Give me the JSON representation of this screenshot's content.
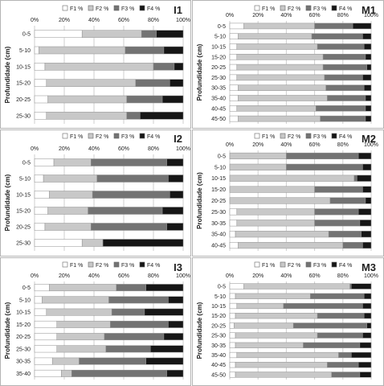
{
  "colors": {
    "F1": "#ffffff",
    "F2": "#c8c8c8",
    "F3": "#737373",
    "F4": "#161616",
    "grid": "#cfcfcf",
    "bar_edge": "#909090",
    "panel_border": "#b4b4b4"
  },
  "chart_data": [
    {
      "type": "bar",
      "orientation": "horizontal",
      "stacked": true,
      "title": "I1",
      "ylabel": "Profundidade (cm)",
      "xticks": [
        "0%",
        "20%",
        "40%",
        "60%",
        "80%",
        "100%"
      ],
      "xlim": [
        0,
        100
      ],
      "legend": [
        "F1 %",
        "F2 %",
        "F3 %",
        "F4 %"
      ],
      "legend_position": "top",
      "grid": true,
      "categories": [
        "0-5",
        "5-10",
        "10-15",
        "15-20",
        "20-25",
        "25-30"
      ],
      "series": [
        {
          "name": "F1 %",
          "values": [
            32,
            3,
            7,
            8,
            9,
            8
          ]
        },
        {
          "name": "F2 %",
          "values": [
            40,
            58,
            73,
            60,
            53,
            54
          ]
        },
        {
          "name": "F3 %",
          "values": [
            10,
            26,
            14,
            23,
            24,
            9
          ]
        },
        {
          "name": "F4 %",
          "values": [
            18,
            13,
            6,
            9,
            14,
            29
          ]
        }
      ]
    },
    {
      "type": "bar",
      "orientation": "horizontal",
      "stacked": true,
      "title": "M1",
      "ylabel": "Profundidade (cm)",
      "xticks": [
        "0%",
        "20%",
        "40%",
        "60%",
        "80%",
        "100%"
      ],
      "xlim": [
        0,
        100
      ],
      "legend": [
        "F1 %",
        "F2 %",
        "F3 %",
        "F4 %"
      ],
      "legend_position": "top",
      "grid": true,
      "categories": [
        "0-5",
        "5-10",
        "10-15",
        "15-20",
        "20-25",
        "25-30",
        "30-35",
        "35-40",
        "40-45",
        "45-50"
      ],
      "series": [
        {
          "name": "F1 %",
          "values": [
            10,
            6,
            5,
            5,
            5,
            5,
            6,
            6,
            5,
            6
          ]
        },
        {
          "name": "F2 %",
          "values": [
            50,
            52,
            57,
            61,
            61,
            62,
            62,
            63,
            56,
            58
          ]
        },
        {
          "name": "F3 %",
          "values": [
            27,
            36,
            33,
            30,
            31,
            27,
            27,
            27,
            35,
            32
          ]
        },
        {
          "name": "F4 %",
          "values": [
            13,
            6,
            5,
            4,
            3,
            6,
            5,
            4,
            4,
            4
          ]
        }
      ]
    },
    {
      "type": "bar",
      "orientation": "horizontal",
      "stacked": true,
      "title": "I2",
      "ylabel": "Profundidade (cm)",
      "xticks": [
        "0%",
        "20%",
        "40%",
        "60%",
        "80%",
        "100%"
      ],
      "xlim": [
        0,
        100
      ],
      "legend": [
        "F1 %",
        "F2 %",
        "F3 %",
        "F4 %"
      ],
      "legend_position": "top",
      "grid": true,
      "categories": [
        "0-5",
        "5-10",
        "10-15",
        "15-20",
        "20-25",
        "25-30"
      ],
      "series": [
        {
          "name": "F1 %",
          "values": [
            13,
            6,
            10,
            9,
            7,
            32
          ]
        },
        {
          "name": "F2 %",
          "values": [
            25,
            36,
            29,
            27,
            31,
            14
          ]
        },
        {
          "name": "F3 %",
          "values": [
            51,
            48,
            52,
            50,
            51,
            0
          ]
        },
        {
          "name": "F4 %",
          "values": [
            11,
            10,
            9,
            14,
            11,
            54
          ]
        }
      ]
    },
    {
      "type": "bar",
      "orientation": "horizontal",
      "stacked": true,
      "title": "M2",
      "ylabel": "Profundidade (cm)",
      "xticks": [
        "0%",
        "20%",
        "40%",
        "60%",
        "80%",
        "100%"
      ],
      "xlim": [
        0,
        100
      ],
      "legend": [
        "F1 %",
        "F2 %",
        "F3 %",
        "F4 %"
      ],
      "legend_position": "top",
      "grid": true,
      "categories": [
        "0-5",
        "5-10",
        "10-15",
        "15-20",
        "20-25",
        "25-30",
        "30-35",
        "35-40",
        "40-45"
      ],
      "series": [
        {
          "name": "F1 %",
          "values": [
            0,
            0,
            0,
            0,
            0,
            5,
            5,
            4,
            6
          ]
        },
        {
          "name": "F2 %",
          "values": [
            40,
            40,
            88,
            60,
            71,
            55,
            55,
            66,
            74
          ]
        },
        {
          "name": "F3 %",
          "values": [
            51,
            54,
            2,
            34,
            25,
            31,
            32,
            23,
            14
          ]
        },
        {
          "name": "F4 %",
          "values": [
            9,
            6,
            10,
            6,
            4,
            9,
            8,
            7,
            6
          ]
        }
      ]
    },
    {
      "type": "bar",
      "orientation": "horizontal",
      "stacked": true,
      "title": "I3",
      "ylabel": "Profundidade (cm)",
      "xticks": [
        "0%",
        "20%",
        "40%",
        "60%",
        "80%",
        "100%"
      ],
      "xlim": [
        0,
        100
      ],
      "legend": [
        "F1 %",
        "F2 %",
        "F3 %",
        "F4 %"
      ],
      "legend_position": "top",
      "grid": true,
      "categories": [
        "0-5",
        "5-10",
        "10-15",
        "15-20",
        "20-25",
        "25-30",
        "30-35",
        "35-40"
      ],
      "series": [
        {
          "name": "F1 %",
          "values": [
            10,
            5,
            8,
            15,
            15,
            15,
            12,
            18
          ]
        },
        {
          "name": "F2 %",
          "values": [
            45,
            45,
            44,
            36,
            32,
            33,
            18,
            7
          ]
        },
        {
          "name": "F3 %",
          "values": [
            20,
            40,
            22,
            39,
            40,
            30,
            45,
            64
          ]
        },
        {
          "name": "F4 %",
          "values": [
            25,
            10,
            26,
            10,
            13,
            22,
            25,
            11
          ]
        }
      ]
    },
    {
      "type": "bar",
      "orientation": "horizontal",
      "stacked": true,
      "title": "M3",
      "ylabel": "Profundidade (cm)",
      "xticks": [
        "0%",
        "20%",
        "40%",
        "60%",
        "80%",
        "100%"
      ],
      "xlim": [
        0,
        100
      ],
      "legend": [
        "F1 %",
        "F2 %",
        "F3 %",
        "F4 %"
      ],
      "legend_position": "top",
      "grid": true,
      "categories": [
        "0-5",
        "5-10",
        "10-15",
        "15-20",
        "20-25",
        "25-30",
        "30-35",
        "35-40",
        "40-45",
        "45-50"
      ],
      "series": [
        {
          "name": "F1 %",
          "values": [
            10,
            4,
            5,
            4,
            3,
            4,
            4,
            5,
            4,
            4
          ]
        },
        {
          "name": "F2 %",
          "values": [
            75,
            53,
            33,
            58,
            42,
            58,
            48,
            72,
            65,
            68
          ]
        },
        {
          "name": "F3 %",
          "values": [
            1,
            38,
            56,
            33,
            52,
            32,
            40,
            9,
            22,
            20
          ]
        },
        {
          "name": "F4 %",
          "values": [
            14,
            5,
            6,
            5,
            3,
            6,
            8,
            14,
            9,
            8
          ]
        }
      ]
    }
  ]
}
